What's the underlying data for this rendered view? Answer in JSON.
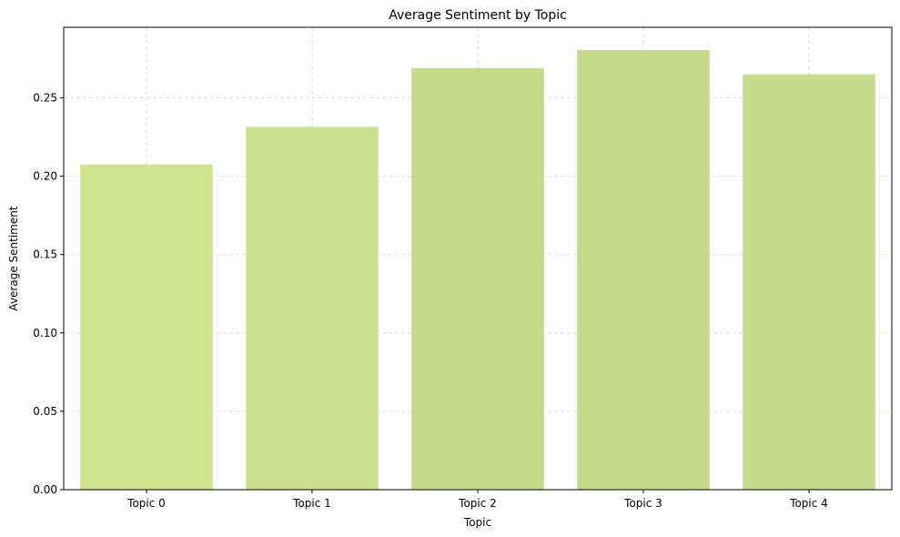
{
  "chart_data": {
    "type": "bar",
    "title": "Average Sentiment by Topic",
    "xlabel": "Topic",
    "ylabel": "Average Sentiment",
    "categories": [
      "Topic 0",
      "Topic 1",
      "Topic 2",
      "Topic 3",
      "Topic 4"
    ],
    "values": [
      0.2075,
      0.2315,
      0.269,
      0.2805,
      0.265
    ],
    "bar_colors": [
      "#d0e38f",
      "#cce08d",
      "#c4dc8a",
      "#c3da8a",
      "#c5dc8b"
    ],
    "ylim": [
      0,
      0.295
    ],
    "yticks": [
      0.0,
      0.05,
      0.1,
      0.15,
      0.2,
      0.25
    ],
    "ytick_labels": [
      "0.00",
      "0.05",
      "0.10",
      "0.15",
      "0.20",
      "0.25"
    ],
    "grid": true,
    "grid_color": "#dddddd"
  }
}
